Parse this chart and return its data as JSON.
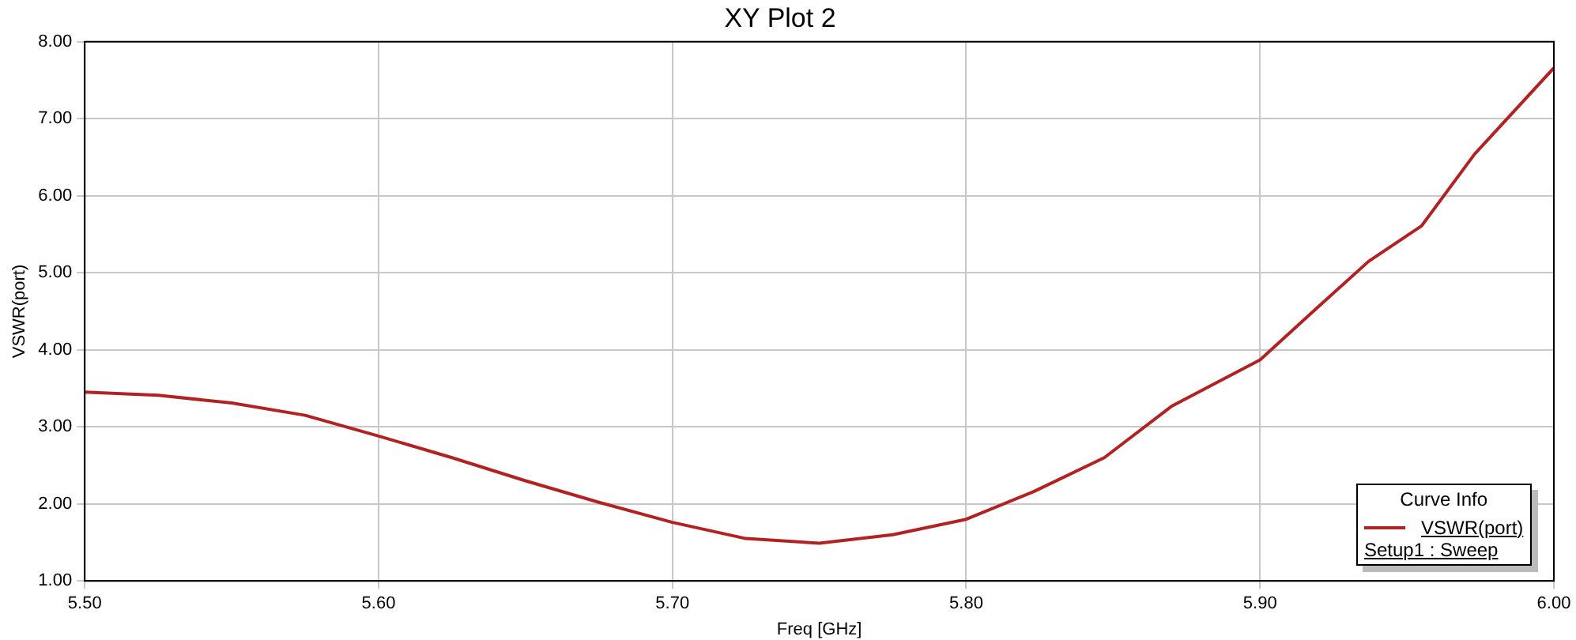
{
  "chart_data": {
    "type": "line",
    "title": "XY Plot 2",
    "xlabel": "Freq [GHz]",
    "ylabel": "VSWR(port)",
    "legend_title": "Curve Info",
    "annotations": [
      "Setup1 : Sweep"
    ],
    "x": [
      5.5,
      5.525,
      5.55,
      5.575,
      5.6,
      5.625,
      5.65,
      5.675,
      5.7,
      5.725,
      5.75,
      5.775,
      5.8,
      5.823,
      5.847,
      5.87,
      5.9,
      5.919,
      5.937,
      5.955,
      5.973,
      6.0
    ],
    "series": [
      {
        "name": "VSWR(port)",
        "color": "#b22222",
        "values": [
          3.45,
          3.41,
          3.31,
          3.15,
          2.88,
          2.6,
          2.3,
          2.02,
          1.76,
          1.55,
          1.49,
          1.6,
          1.8,
          2.16,
          2.6,
          3.27,
          3.87,
          4.53,
          5.15,
          5.61,
          6.54,
          7.66
        ]
      }
    ],
    "xlim": [
      5.5,
      6.0
    ],
    "xticks": [
      {
        "value": 5.5,
        "label": "5.50"
      },
      {
        "value": 5.6,
        "label": "5.60"
      },
      {
        "value": 5.7,
        "label": "5.70"
      },
      {
        "value": 5.8,
        "label": "5.80"
      },
      {
        "value": 5.9,
        "label": "5.90"
      },
      {
        "value": 6.0,
        "label": "6.00"
      }
    ],
    "ylim": [
      1,
      8
    ],
    "yticks": [
      {
        "value": 1,
        "label": "1.00"
      },
      {
        "value": 2,
        "label": "2.00"
      },
      {
        "value": 3,
        "label": "3.00"
      },
      {
        "value": 4,
        "label": "4.00"
      },
      {
        "value": 5,
        "label": "5.00"
      },
      {
        "value": 6,
        "label": "6.00"
      },
      {
        "value": 7,
        "label": "7.00"
      },
      {
        "value": 8,
        "label": "8.00"
      }
    ],
    "grid": true,
    "legend": "bottom right",
    "marker": "none",
    "line_style": "solid"
  }
}
